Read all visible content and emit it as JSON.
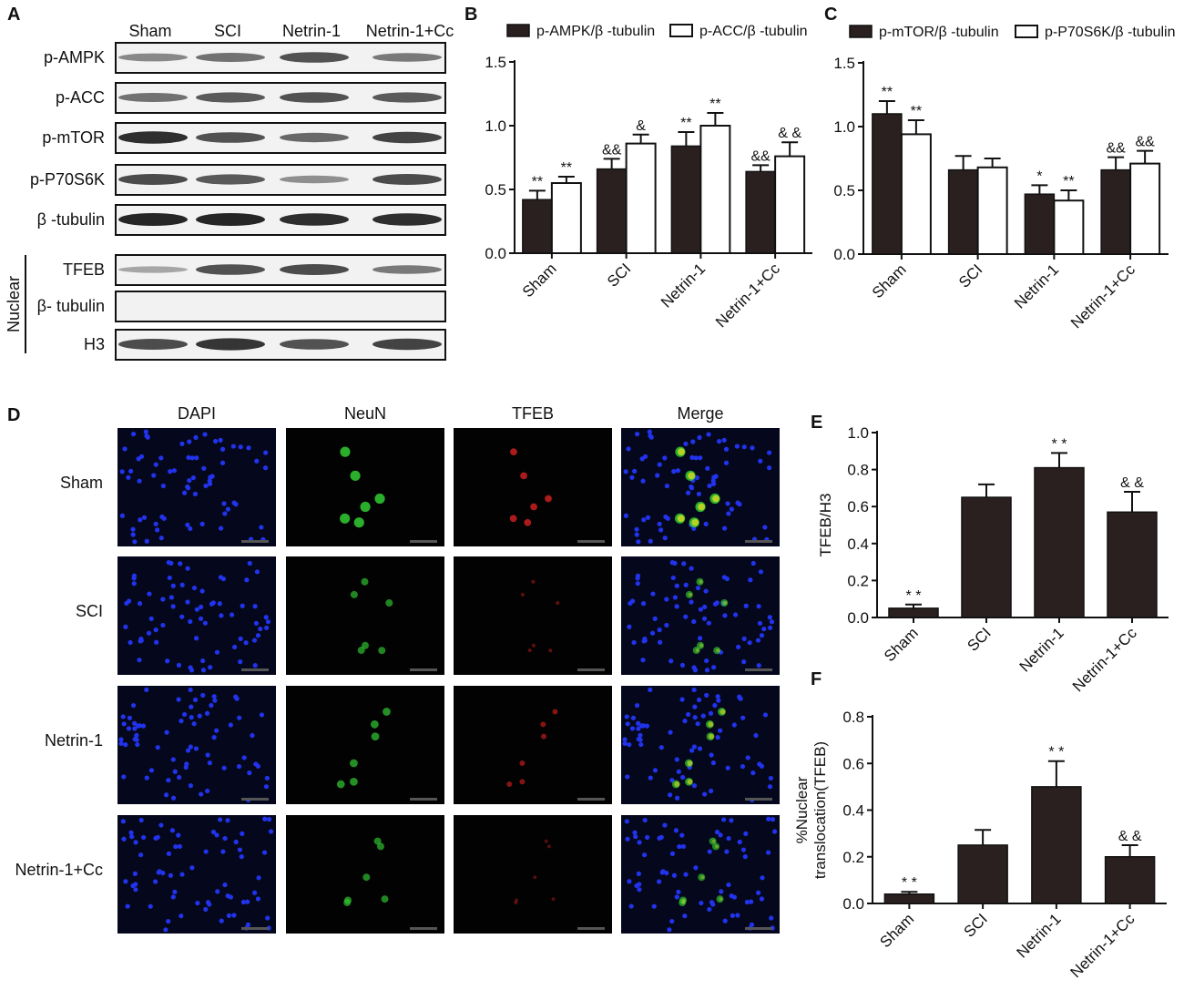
{
  "panels": {
    "A": "A",
    "B": "B",
    "C": "C",
    "D": "D",
    "E": "E",
    "F": "F"
  },
  "blot": {
    "groups": [
      "Sham",
      "SCI",
      "Netrin-1",
      "Netrin-1+Cc"
    ],
    "rows": [
      {
        "label": "p-AMPK",
        "intensity": [
          0.35,
          0.5,
          0.7,
          0.45
        ]
      },
      {
        "label": "p-ACC",
        "intensity": [
          0.5,
          0.65,
          0.7,
          0.65
        ]
      },
      {
        "label": "p-mTOR",
        "intensity": [
          0.95,
          0.7,
          0.55,
          0.8
        ]
      },
      {
        "label": "p-P70S6K",
        "intensity": [
          0.75,
          0.65,
          0.3,
          0.75
        ]
      },
      {
        "label": "β -tubulin",
        "intensity": [
          1.0,
          1.0,
          0.95,
          0.95
        ]
      },
      {
        "label": "TFEB",
        "intensity": [
          0.15,
          0.7,
          0.75,
          0.45
        ]
      },
      {
        "label": "β- tubulin",
        "intensity": [
          0,
          0,
          0,
          0
        ]
      },
      {
        "label": "H3",
        "intensity": [
          0.75,
          0.9,
          0.7,
          0.8
        ]
      }
    ],
    "nuclear_label": "Nuclear"
  },
  "micro": {
    "columns": [
      "DAPI",
      "NeuN",
      "TFEB",
      "Merge"
    ],
    "rows": [
      "Sham",
      "SCI",
      "Netrin-1",
      "Netrin-1+Cc"
    ],
    "neun_level": [
      0.9,
      0.5,
      0.6,
      0.5
    ],
    "tfeb_level": [
      0.8,
      0.2,
      0.5,
      0.15
    ]
  },
  "chart_data": [
    {
      "id": "B",
      "type": "bar",
      "categories": [
        "Sham",
        "SCI",
        "Netrin-1",
        "Netrin-1+Cc"
      ],
      "ylim": [
        0,
        1.5
      ],
      "yticks": [
        "0.0",
        "0.5",
        "1.0",
        "1.5"
      ],
      "ylabel": "",
      "series": [
        {
          "name": "p-AMPK/β -tubulin",
          "color": "#2a2020",
          "values": [
            0.42,
            0.66,
            0.84,
            0.64
          ],
          "errors": [
            0.07,
            0.08,
            0.11,
            0.05
          ],
          "annotations": [
            "**",
            "&&",
            "**",
            "&&"
          ]
        },
        {
          "name": "p-ACC/β -tubulin",
          "color": "#ffffff",
          "values": [
            0.55,
            0.86,
            1.0,
            0.76
          ],
          "errors": [
            0.05,
            0.07,
            0.1,
            0.11
          ],
          "annotations": [
            "**",
            "&",
            "**",
            "& &"
          ]
        }
      ]
    },
    {
      "id": "C",
      "type": "bar",
      "categories": [
        "Sham",
        "SCI",
        "Netrin-1",
        "Netrin-1+Cc"
      ],
      "ylim": [
        0,
        1.5
      ],
      "yticks": [
        "0.0",
        "0.5",
        "1.0",
        "1.5"
      ],
      "ylabel": "",
      "series": [
        {
          "name": "p-mTOR/β -tubulin",
          "color": "#2a2020",
          "values": [
            1.1,
            0.66,
            0.47,
            0.66
          ],
          "errors": [
            0.1,
            0.11,
            0.07,
            0.1
          ],
          "annotations": [
            "**",
            "",
            "*",
            "&&"
          ]
        },
        {
          "name": "p-P70S6K/β -tubulin",
          "color": "#ffffff",
          "values": [
            0.94,
            0.68,
            0.42,
            0.71
          ],
          "errors": [
            0.11,
            0.07,
            0.08,
            0.1
          ],
          "annotations": [
            "**",
            "",
            "**",
            "&&"
          ]
        }
      ]
    },
    {
      "id": "E",
      "type": "bar",
      "categories": [
        "Sham",
        "SCI",
        "Netrin-1",
        "Netrin-1+Cc"
      ],
      "ylim": [
        0,
        1.0
      ],
      "yticks": [
        "0.0",
        "0.2",
        "0.4",
        "0.6",
        "0.8",
        "1.0"
      ],
      "ylabel": "TFEB/H3",
      "series": [
        {
          "name": "",
          "color": "#2a2020",
          "values": [
            0.05,
            0.65,
            0.81,
            0.57
          ],
          "errors": [
            0.02,
            0.07,
            0.08,
            0.11
          ],
          "annotations": [
            "* *",
            "",
            "* *",
            "& &"
          ]
        }
      ]
    },
    {
      "id": "F",
      "type": "bar",
      "categories": [
        "Sham",
        "SCI",
        "Netrin-1",
        "Netrin-1+Cc"
      ],
      "ylim": [
        0,
        0.8
      ],
      "yticks": [
        "0.0",
        "0.2",
        "0.4",
        "0.6",
        "0.8"
      ],
      "ylabel": "%Nuclear translocation(TFEB)",
      "ylabel_lines": [
        "%Nuclear",
        "translocation(TFEB)"
      ],
      "series": [
        {
          "name": "",
          "color": "#2a2020",
          "values": [
            0.04,
            0.25,
            0.5,
            0.2
          ],
          "errors": [
            0.01,
            0.065,
            0.11,
            0.05
          ],
          "annotations": [
            "* *",
            "",
            "* *",
            "& &"
          ]
        }
      ]
    }
  ]
}
